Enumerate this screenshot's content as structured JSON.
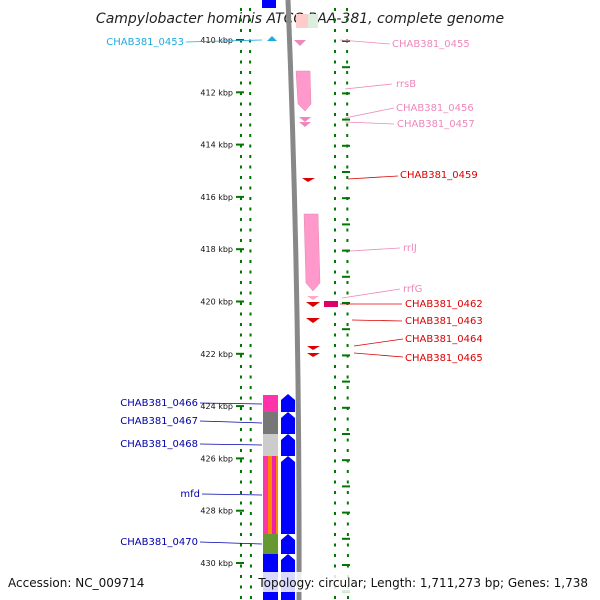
{
  "title": "Campylobacter hominis ATCC BAA-381, complete genome",
  "footer": {
    "accession": "Accession: NC_009714",
    "topology": "Topology: circular; Length: 1,711,273 bp; Genes: 1,738"
  },
  "colors": {
    "blue_label": "#0000aa",
    "cyan_label": "#22aadd",
    "pink_label": "#ee88bb",
    "red_label": "#dd0000",
    "tick_green": "#007700",
    "arc_gray": "#888888"
  },
  "ticks": [
    {
      "label": "410 kbp"
    },
    {
      "label": "412 kbp"
    },
    {
      "label": "414 kbp"
    },
    {
      "label": "416 kbp"
    },
    {
      "label": "418 kbp"
    },
    {
      "label": "420 kbp"
    },
    {
      "label": "422 kbp"
    },
    {
      "label": "424 kbp"
    },
    {
      "label": "426 kbp"
    },
    {
      "label": "428 kbp"
    },
    {
      "label": "430 kbp"
    }
  ],
  "gene_labels": [
    {
      "name": "CHAB381_0453",
      "group": "cyan"
    },
    {
      "name": "CHAB381_0455",
      "group": "pink"
    },
    {
      "name": "rrsB",
      "group": "pink"
    },
    {
      "name": "CHAB381_0456",
      "group": "pink"
    },
    {
      "name": "CHAB381_0457",
      "group": "pink"
    },
    {
      "name": "CHAB381_0459",
      "group": "red"
    },
    {
      "name": "rrlJ",
      "group": "pink"
    },
    {
      "name": "rrfG",
      "group": "pink"
    },
    {
      "name": "CHAB381_0462",
      "group": "red"
    },
    {
      "name": "CHAB381_0463",
      "group": "red"
    },
    {
      "name": "CHAB381_0464",
      "group": "red"
    },
    {
      "name": "CHAB381_0465",
      "group": "red"
    },
    {
      "name": "CHAB381_0466",
      "group": "blue"
    },
    {
      "name": "CHAB381_0467",
      "group": "blue"
    },
    {
      "name": "CHAB381_0468",
      "group": "blue"
    },
    {
      "name": "mfd",
      "group": "blue"
    },
    {
      "name": "CHAB381_0470",
      "group": "blue"
    }
  ]
}
